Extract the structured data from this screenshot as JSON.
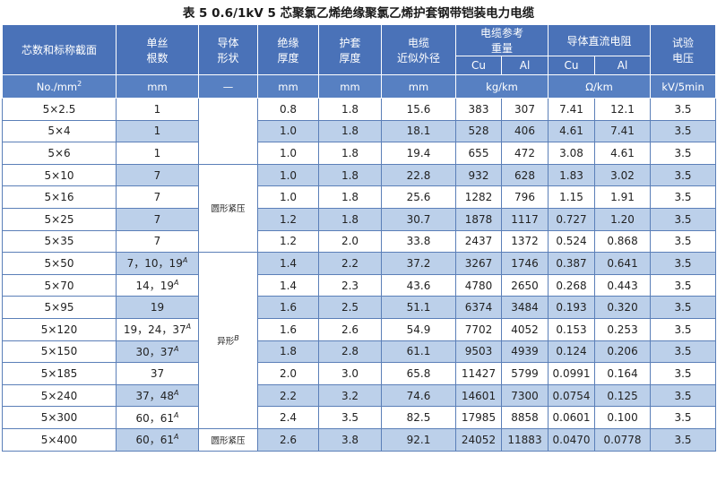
{
  "title": "表 5 0.6/1kV 5 芯聚氯乙烯绝缘聚氯乙烯护套钢带铠装电力电缆",
  "headers": {
    "core": "芯数和标称截面",
    "wire_count": [
      "单丝",
      "根数"
    ],
    "conductor_shape": [
      "导体",
      "形状"
    ],
    "insulation": [
      "绝缘",
      "厚度"
    ],
    "sheath": [
      "护套",
      "厚度"
    ],
    "diameter": [
      "电缆",
      "近似外径"
    ],
    "weight": [
      "电缆参考",
      "重量"
    ],
    "resistance": "导体直流电阻",
    "voltage": [
      "试验",
      "电压"
    ],
    "cu": "Cu",
    "al": "Al"
  },
  "units": {
    "core": "No./mm",
    "core_sup": "2",
    "wire_count": "mm",
    "conductor_shape": "—",
    "insulation": "mm",
    "sheath": "mm",
    "diameter": "mm",
    "weight": "kg/km",
    "resistance": "Ω/km",
    "voltage": "kV/5min"
  },
  "shapes": {
    "round_compact_1": "圆形紧压",
    "sector": "异形",
    "sector_sup": "B",
    "round_compact_2": "圆形紧压"
  },
  "rows": [
    {
      "size": "5×2.5",
      "wires": "1",
      "wires_sup": "",
      "ins": "0.8",
      "sheath": "1.8",
      "dia": "15.6",
      "w_cu": "383",
      "w_al": "307",
      "r_cu": "7.41",
      "r_al": "12.1",
      "v": "3.5"
    },
    {
      "size": "5×4",
      "wires": "1",
      "wires_sup": "",
      "ins": "1.0",
      "sheath": "1.8",
      "dia": "18.1",
      "w_cu": "528",
      "w_al": "406",
      "r_cu": "4.61",
      "r_al": "7.41",
      "v": "3.5"
    },
    {
      "size": "5×6",
      "wires": "1",
      "wires_sup": "",
      "ins": "1.0",
      "sheath": "1.8",
      "dia": "19.4",
      "w_cu": "655",
      "w_al": "472",
      "r_cu": "3.08",
      "r_al": "4.61",
      "v": "3.5"
    },
    {
      "size": "5×10",
      "wires": "7",
      "wires_sup": "",
      "ins": "1.0",
      "sheath": "1.8",
      "dia": "22.8",
      "w_cu": "932",
      "w_al": "628",
      "r_cu": "1.83",
      "r_al": "3.02",
      "v": "3.5"
    },
    {
      "size": "5×16",
      "wires": "7",
      "wires_sup": "",
      "ins": "1.0",
      "sheath": "1.8",
      "dia": "25.6",
      "w_cu": "1282",
      "w_al": "796",
      "r_cu": "1.15",
      "r_al": "1.91",
      "v": "3.5"
    },
    {
      "size": "5×25",
      "wires": "7",
      "wires_sup": "",
      "ins": "1.2",
      "sheath": "1.8",
      "dia": "30.7",
      "w_cu": "1878",
      "w_al": "1117",
      "r_cu": "0.727",
      "r_al": "1.20",
      "v": "3.5"
    },
    {
      "size": "5×35",
      "wires": "7",
      "wires_sup": "",
      "ins": "1.2",
      "sheath": "2.0",
      "dia": "33.8",
      "w_cu": "2437",
      "w_al": "1372",
      "r_cu": "0.524",
      "r_al": "0.868",
      "v": "3.5"
    },
    {
      "size": "5×50",
      "wires": "7，10，19",
      "wires_sup": "A",
      "ins": "1.4",
      "sheath": "2.2",
      "dia": "37.2",
      "w_cu": "3267",
      "w_al": "1746",
      "r_cu": "0.387",
      "r_al": "0.641",
      "v": "3.5"
    },
    {
      "size": "5×70",
      "wires": "14，19",
      "wires_sup": "A",
      "ins": "1.4",
      "sheath": "2.3",
      "dia": "43.6",
      "w_cu": "4780",
      "w_al": "2650",
      "r_cu": "0.268",
      "r_al": "0.443",
      "v": "3.5"
    },
    {
      "size": "5×95",
      "wires": "19",
      "wires_sup": "",
      "ins": "1.6",
      "sheath": "2.5",
      "dia": "51.1",
      "w_cu": "6374",
      "w_al": "3484",
      "r_cu": "0.193",
      "r_al": "0.320",
      "v": "3.5"
    },
    {
      "size": "5×120",
      "wires": "19，24，37",
      "wires_sup": "A",
      "ins": "1.6",
      "sheath": "2.6",
      "dia": "54.9",
      "w_cu": "7702",
      "w_al": "4052",
      "r_cu": "0.153",
      "r_al": "0.253",
      "v": "3.5"
    },
    {
      "size": "5×150",
      "wires": "30，37",
      "wires_sup": "A",
      "ins": "1.8",
      "sheath": "2.8",
      "dia": "61.1",
      "w_cu": "9503",
      "w_al": "4939",
      "r_cu": "0.124",
      "r_al": "0.206",
      "v": "3.5"
    },
    {
      "size": "5×185",
      "wires": "37",
      "wires_sup": "",
      "ins": "2.0",
      "sheath": "3.0",
      "dia": "65.8",
      "w_cu": "11427",
      "w_al": "5799",
      "r_cu": "0.0991",
      "r_al": "0.164",
      "v": "3.5"
    },
    {
      "size": "5×240",
      "wires": "37，48",
      "wires_sup": "A",
      "ins": "2.2",
      "sheath": "3.2",
      "dia": "74.6",
      "w_cu": "14601",
      "w_al": "7300",
      "r_cu": "0.0754",
      "r_al": "0.125",
      "v": "3.5"
    },
    {
      "size": "5×300",
      "wires": "60，61",
      "wires_sup": "A",
      "ins": "2.4",
      "sheath": "3.5",
      "dia": "82.5",
      "w_cu": "17985",
      "w_al": "8858",
      "r_cu": "0.0601",
      "r_al": "0.100",
      "v": "3.5"
    },
    {
      "size": "5×400",
      "wires": "60，61",
      "wires_sup": "A",
      "ins": "2.6",
      "sheath": "3.8",
      "dia": "92.1",
      "w_cu": "24052",
      "w_al": "11883",
      "r_cu": "0.0470",
      "r_al": "0.0778",
      "v": "3.5"
    }
  ],
  "colors": {
    "header_bg": "#4a72b8",
    "highlight": "#bcd0ea",
    "border": "#5b7fb8"
  }
}
